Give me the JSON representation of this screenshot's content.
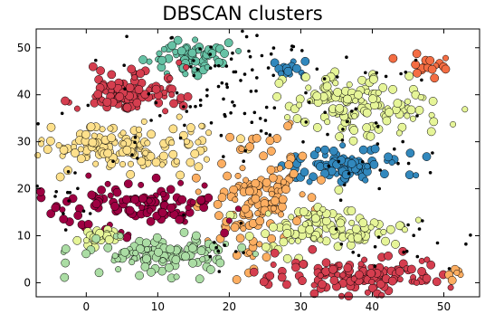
{
  "chart_data": {
    "type": "scatter",
    "title": "DBSCAN clusters",
    "xlabel": "",
    "ylabel": "",
    "xlim": [
      -7,
      55
    ],
    "ylim": [
      -3,
      54
    ],
    "xticks": [
      0,
      10,
      20,
      30,
      40,
      50
    ],
    "yticks": [
      0,
      10,
      20,
      30,
      40,
      50
    ],
    "grid": false,
    "legend": "none",
    "core_point_size": "large",
    "border_point_size": "medium",
    "noise_color": "#000000",
    "clusters": [
      {
        "center": [
          14.5,
          48.0
        ],
        "spread": [
          2.8,
          1.6
        ],
        "n": 60,
        "color": "#66c2a5"
      },
      {
        "center": [
          6.5,
          40.5
        ],
        "spread": [
          3.5,
          2.4
        ],
        "n": 110,
        "color": "#d53e4f"
      },
      {
        "center": [
          28.5,
          45.5
        ],
        "spread": [
          1.2,
          0.9
        ],
        "n": 15,
        "color": "#3288bd"
      },
      {
        "center": [
          48.5,
          46.0
        ],
        "spread": [
          1.6,
          1.1
        ],
        "n": 18,
        "color": "#f46d43"
      },
      {
        "center": [
          38.0,
          38.0
        ],
        "spread": [
          5.0,
          3.0
        ],
        "n": 140,
        "color": "#e6f598"
      },
      {
        "center": [
          5.5,
          29.0
        ],
        "spread": [
          7.0,
          2.6
        ],
        "n": 150,
        "color": "#fee08b"
      },
      {
        "center": [
          36.5,
          25.0
        ],
        "spread": [
          4.0,
          1.9
        ],
        "n": 90,
        "color": "#3288bd"
      },
      {
        "center": [
          24.0,
          18.0
        ],
        "spread": [
          3.5,
          5.5
        ],
        "n": 140,
        "color": "#fdae61"
      },
      {
        "center": [
          33.0,
          12.0
        ],
        "spread": [
          5.5,
          2.3
        ],
        "n": 110,
        "color": "#e6f598"
      },
      {
        "center": [
          7.0,
          17.0
        ],
        "spread": [
          7.0,
          2.4
        ],
        "n": 120,
        "color": "#9e0142"
      },
      {
        "center": [
          2.0,
          10.0
        ],
        "spread": [
          1.4,
          1.3
        ],
        "n": 25,
        "color": "#e6f598"
      },
      {
        "center": [
          10.5,
          6.0
        ],
        "spread": [
          5.5,
          1.9
        ],
        "n": 120,
        "color": "#abdda4"
      },
      {
        "center": [
          38.0,
          1.5
        ],
        "spread": [
          6.0,
          2.0
        ],
        "n": 130,
        "color": "#d53e4f"
      },
      {
        "center": [
          52.0,
          2.0
        ],
        "spread": [
          0.9,
          0.6
        ],
        "n": 6,
        "color": "#fdae61"
      }
    ],
    "noise_regions": [
      {
        "center": [
          20.0,
          42.0
        ],
        "spread": [
          4.0,
          6.0
        ],
        "n": 45
      },
      {
        "center": [
          5.0,
          36.0
        ],
        "spread": [
          8.0,
          8.0
        ],
        "n": 25
      },
      {
        "center": [
          22.0,
          50.0
        ],
        "spread": [
          6.0,
          2.0
        ],
        "n": 15
      },
      {
        "center": [
          30.0,
          32.0
        ],
        "spread": [
          7.0,
          7.0
        ],
        "n": 25
      },
      {
        "center": [
          -3.0,
          18.0
        ],
        "spread": [
          2.0,
          3.0
        ],
        "n": 12
      },
      {
        "center": [
          42.0,
          25.0
        ],
        "spread": [
          6.0,
          6.0
        ],
        "n": 15
      },
      {
        "center": [
          44.0,
          8.0
        ],
        "spread": [
          7.0,
          4.0
        ],
        "n": 18
      },
      {
        "center": [
          18.0,
          8.0
        ],
        "spread": [
          3.0,
          3.0
        ],
        "n": 10
      },
      {
        "center": [
          42.0,
          46.0
        ],
        "spread": [
          5.0,
          3.0
        ],
        "n": 10
      }
    ]
  }
}
